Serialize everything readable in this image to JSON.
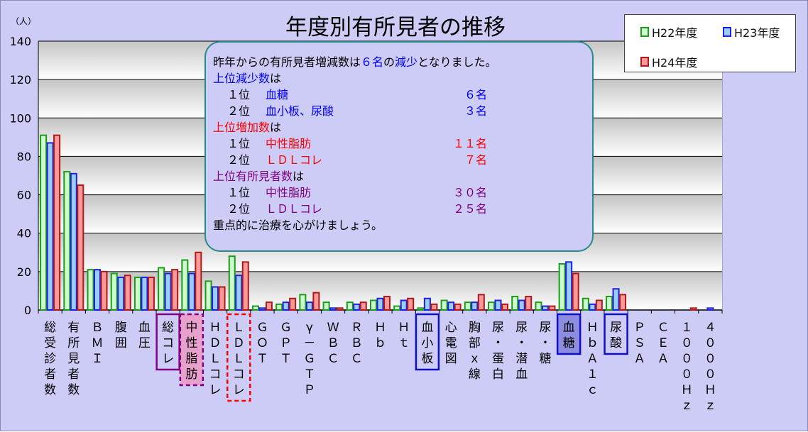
{
  "chart_data": {
    "type": "bar",
    "title": "年度別有所見者の推移",
    "ylabel": "（人）",
    "ylim": [
      0,
      140
    ],
    "yticks": [
      "0",
      "20",
      "40",
      "60",
      "80",
      "100",
      "120",
      "140"
    ],
    "categories": [
      "総受診者数",
      "有所見者数",
      "ＢＭＩ",
      "腹囲",
      "血圧",
      "総コレ",
      "中性脂肪",
      "ＨＤＬコレ",
      "ＬＤＬコレ",
      "ＧＯＴ",
      "ＧＰＴ",
      "γ－ＧＴＰ",
      "ＷＢＣ",
      "ＲＢＣ",
      "Ｈｂ",
      "Ｈｔ",
      "血小板",
      "心電図",
      "胸部ｘ線",
      "尿・蛋白",
      "尿・潜血",
      "尿・糖",
      "血糖",
      "ＨｂＡ１ｃ",
      "尿酸",
      "ＰＳＡ",
      "ＣＥＡ",
      "１０００Ｈｚ",
      "４０００Ｈｚ"
    ],
    "category_labels": [
      "総受診者数",
      "有所見者数",
      "ＢＭＩ",
      "腹囲",
      "血圧",
      "総コレ",
      "中性脂肪",
      "ＨＤＬコレ",
      "ＬＤＬコレ",
      "ＧＯＴ",
      "ＧＰＴ",
      "γ－ＧＴＰ",
      "ＷＢＣ",
      "ＲＢＣ",
      "Ｈｂ",
      "Ｈｔ",
      "血小板",
      "心電図",
      "胸部ｘ線",
      "尿・蛋白",
      "尿・潜血",
      "尿・糖",
      "血糖",
      "ＨｂＡ１ｃ",
      "尿酸",
      "ＰＳＡ",
      "ＣＥＡ",
      "１０００Ｈｚ",
      "４０００Ｈｚ"
    ],
    "series": [
      {
        "name": "H22年度",
        "fill": "#ccffcc",
        "stroke": "#1e9a1e",
        "values": [
          91,
          72,
          21,
          19,
          17,
          22,
          26,
          15,
          28,
          2,
          3,
          8,
          4,
          4,
          5,
          2,
          1,
          5,
          4,
          4,
          7,
          4,
          24,
          6,
          7,
          0,
          0,
          0,
          0
        ]
      },
      {
        "name": "H23年度",
        "fill": "#99ccff",
        "stroke": "#2020e0",
        "values": [
          87,
          71,
          21,
          17,
          17,
          19,
          19,
          12,
          18,
          1,
          4,
          4,
          1,
          3,
          6,
          5,
          6,
          4,
          4,
          5,
          5,
          2,
          25,
          3,
          11,
          0,
          0,
          0,
          1
        ]
      },
      {
        "name": "H24年度",
        "fill": "#ff9999",
        "stroke": "#aa1c1c",
        "values": [
          91,
          65,
          20,
          18,
          17,
          21,
          30,
          12,
          25,
          4,
          6,
          9,
          1,
          4,
          7,
          6,
          3,
          3,
          8,
          3,
          7,
          2,
          19,
          5,
          8,
          0,
          0,
          1,
          0
        ]
      }
    ],
    "highlight_boxes": [
      {
        "category": 5,
        "color": "#800080",
        "style": "solid",
        "fill": "none"
      },
      {
        "category": 6,
        "color": "#800080",
        "style": "dashed",
        "fill": "#e8a0cc"
      },
      {
        "category": 8,
        "color": "#ff0000",
        "style": "dashed",
        "fill": "none"
      },
      {
        "category": 16,
        "color": "#1010c0",
        "style": "solid",
        "fill": "none"
      },
      {
        "category": 22,
        "color": "#1010c0",
        "style": "solid",
        "fill": "#8c8ce0"
      },
      {
        "category": 24,
        "color": "#1010c0",
        "style": "solid",
        "fill": "none"
      }
    ],
    "grid": true,
    "legend": "top-right"
  },
  "note": {
    "lines": [
      {
        "parts": [
          {
            "t": "昨年からの有所見者増減数は",
            "c": "#000000"
          },
          {
            "t": "６名",
            "c": "#0000ff"
          },
          {
            "t": "の",
            "c": "#000000"
          },
          {
            "t": "減少",
            "c": "#0000ff"
          },
          {
            "t": "となりました。",
            "c": "#000000"
          }
        ]
      },
      {
        "parts": [
          {
            "t": "上位減少数",
            "c": "#0000ff"
          },
          {
            "t": "は",
            "c": "#000000"
          }
        ]
      },
      {
        "rank": "１位",
        "item": "血糖",
        "count": "６名",
        "c": "#0000ff"
      },
      {
        "rank": "２位",
        "item": "血小板、尿酸",
        "count": "３名",
        "c": "#0000ff"
      },
      {
        "parts": [
          {
            "t": "上位増加数",
            "c": "#ff0000"
          },
          {
            "t": "は",
            "c": "#000000"
          }
        ]
      },
      {
        "rank": "１位",
        "item": "中性脂肪",
        "count": "１１名",
        "c": "#ff0000"
      },
      {
        "rank": "２位",
        "item": "ＬＤＬコレ",
        "count": "７名",
        "c": "#ff0000"
      },
      {
        "parts": [
          {
            "t": "上位有所見者数",
            "c": "#800080"
          },
          {
            "t": "は",
            "c": "#000000"
          }
        ]
      },
      {
        "rank": "１位",
        "item": "中性脂肪",
        "count": "３０名",
        "c": "#800080"
      },
      {
        "rank": "２位",
        "item": "ＬＤＬコレ",
        "count": "２５名",
        "c": "#800080"
      },
      {
        "parts": [
          {
            "t": "重点的に治療を心がけましょう。",
            "c": "#000000"
          }
        ]
      }
    ]
  }
}
